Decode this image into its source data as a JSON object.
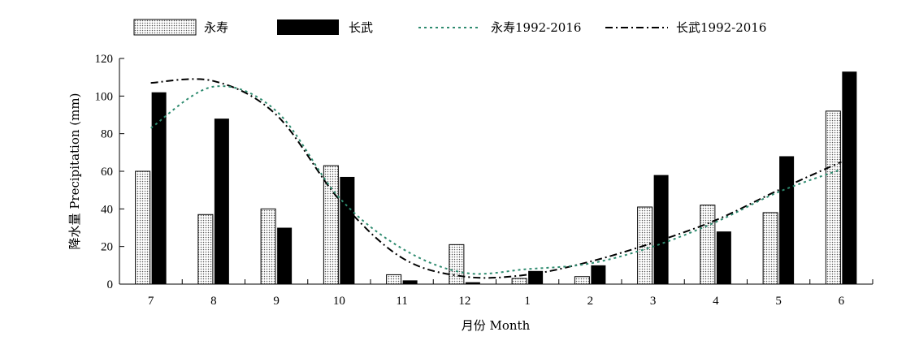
{
  "chart_data": {
    "type": "bar",
    "categories": [
      "7",
      "8",
      "9",
      "10",
      "11",
      "12",
      "1",
      "2",
      "3",
      "4",
      "5",
      "6"
    ],
    "series": [
      {
        "name": "永寿",
        "kind": "bar",
        "style": "dotted",
        "values": [
          60,
          37,
          40,
          63,
          5,
          21,
          3,
          4,
          41,
          42,
          38,
          92
        ]
      },
      {
        "name": "长武",
        "kind": "bar",
        "style": "solid",
        "values": [
          102,
          88,
          30,
          57,
          2,
          1,
          7,
          10,
          58,
          28,
          68,
          113
        ]
      },
      {
        "name": "永寿1992-2016",
        "kind": "line",
        "style": "dotted",
        "values": [
          83,
          105,
          92,
          46,
          19,
          6,
          8,
          11,
          20,
          33,
          49,
          61
        ]
      },
      {
        "name": "长武1992-2016",
        "kind": "line",
        "style": "dash-dot",
        "values": [
          107,
          108,
          90,
          45,
          14,
          4,
          5,
          12,
          22,
          34,
          50,
          65
        ]
      }
    ],
    "xlabel": "月份 Month",
    "ylabel": "降水量 Precipitation (mm)",
    "ylim": [
      0,
      120
    ],
    "yticks": [
      0,
      20,
      40,
      60,
      80,
      100,
      120
    ],
    "grid": false,
    "legend_position": "top"
  },
  "colors": {
    "bar_yongshou_fill": "#ffffff",
    "bar_yongshou_dots": "#555555",
    "bar_changwu": "#000000",
    "line_yongshou": "#2e8b6f",
    "line_changwu": "#000000"
  }
}
